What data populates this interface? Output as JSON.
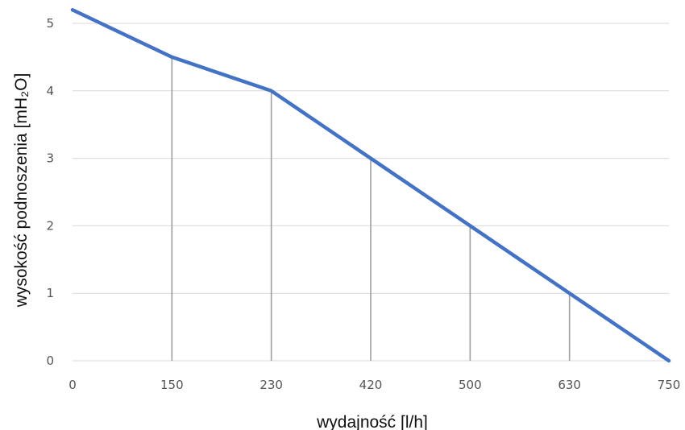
{
  "chart_data": {
    "type": "line",
    "xlabel": "wydajność [l/h]",
    "ylabel": "wysokość podnoszenia [mH₂O]",
    "categories": [
      "0",
      "150",
      "230",
      "420",
      "500",
      "630",
      "750"
    ],
    "ylim": [
      0,
      5
    ],
    "yticks": [
      "0",
      "1",
      "2",
      "3",
      "4",
      "5"
    ],
    "grid": "horizontal",
    "drop_lines": true,
    "series": [
      {
        "values": [
          5.2,
          4.5,
          4.0,
          3.0,
          2.0,
          1.0,
          0.0
        ],
        "color": "#4472C4"
      }
    ]
  }
}
